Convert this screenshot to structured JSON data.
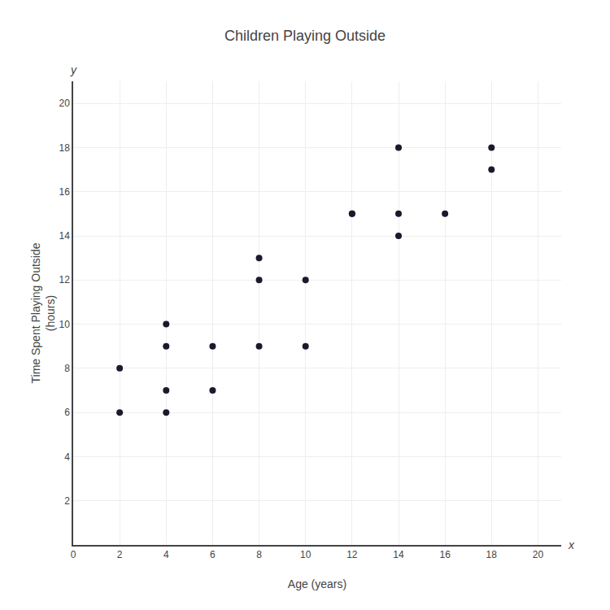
{
  "chart_data": {
    "type": "scatter",
    "title": "Children Playing Outside",
    "xlabel": "Age (years)",
    "ylabel": "Time Spent Playing Outside\n(hours)",
    "annotations": [
      "x",
      "y"
    ],
    "x": [
      2,
      2,
      4,
      4,
      4,
      4,
      6,
      6,
      8,
      8,
      8,
      10,
      10,
      12,
      12,
      14,
      14,
      14,
      16,
      18,
      18
    ],
    "values": [
      6,
      8,
      6,
      7,
      9,
      10,
      7,
      9,
      9,
      12,
      13,
      9,
      12,
      15,
      15,
      14,
      15,
      18,
      15,
      17,
      18
    ],
    "color": "#1a1a2e",
    "xlim": [
      0,
      21
    ],
    "ylim": [
      0,
      21
    ],
    "xticks": [
      0,
      2,
      4,
      6,
      8,
      10,
      12,
      14,
      16,
      18,
      20
    ],
    "yticks": [
      2,
      4,
      6,
      8,
      10,
      12,
      14,
      16,
      18,
      20
    ],
    "grid": true
  }
}
